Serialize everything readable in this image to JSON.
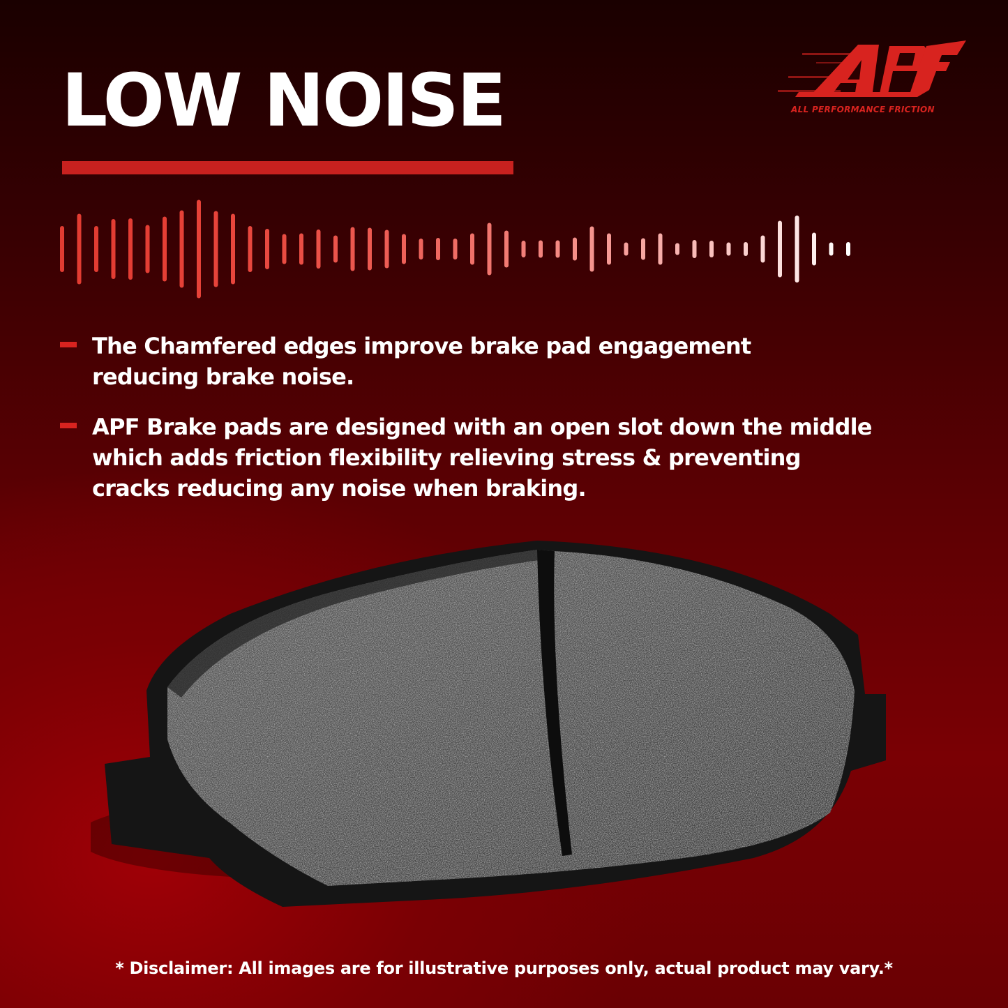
{
  "title": "LOW NOISE",
  "logo": {
    "mark": "APF",
    "tagline": "ALL PERFORMANCE FRICTION"
  },
  "colors": {
    "accent": "#c8211f",
    "background_dark": "#1a0000",
    "background_red": "#7a0004",
    "text": "#ffffff"
  },
  "bullets": [
    {
      "text": "The Chamfered edges improve brake pad engagement\nreducing brake noise."
    },
    {
      "text": "APF Brake pads are designed with an open slot down the middle\nwhich adds friction flexibility relieving stress & preventing\n cracks reducing any noise when braking."
    }
  ],
  "disclaimer": "* Disclaimer: All images are for illustrative purposes only, actual product may vary.*"
}
